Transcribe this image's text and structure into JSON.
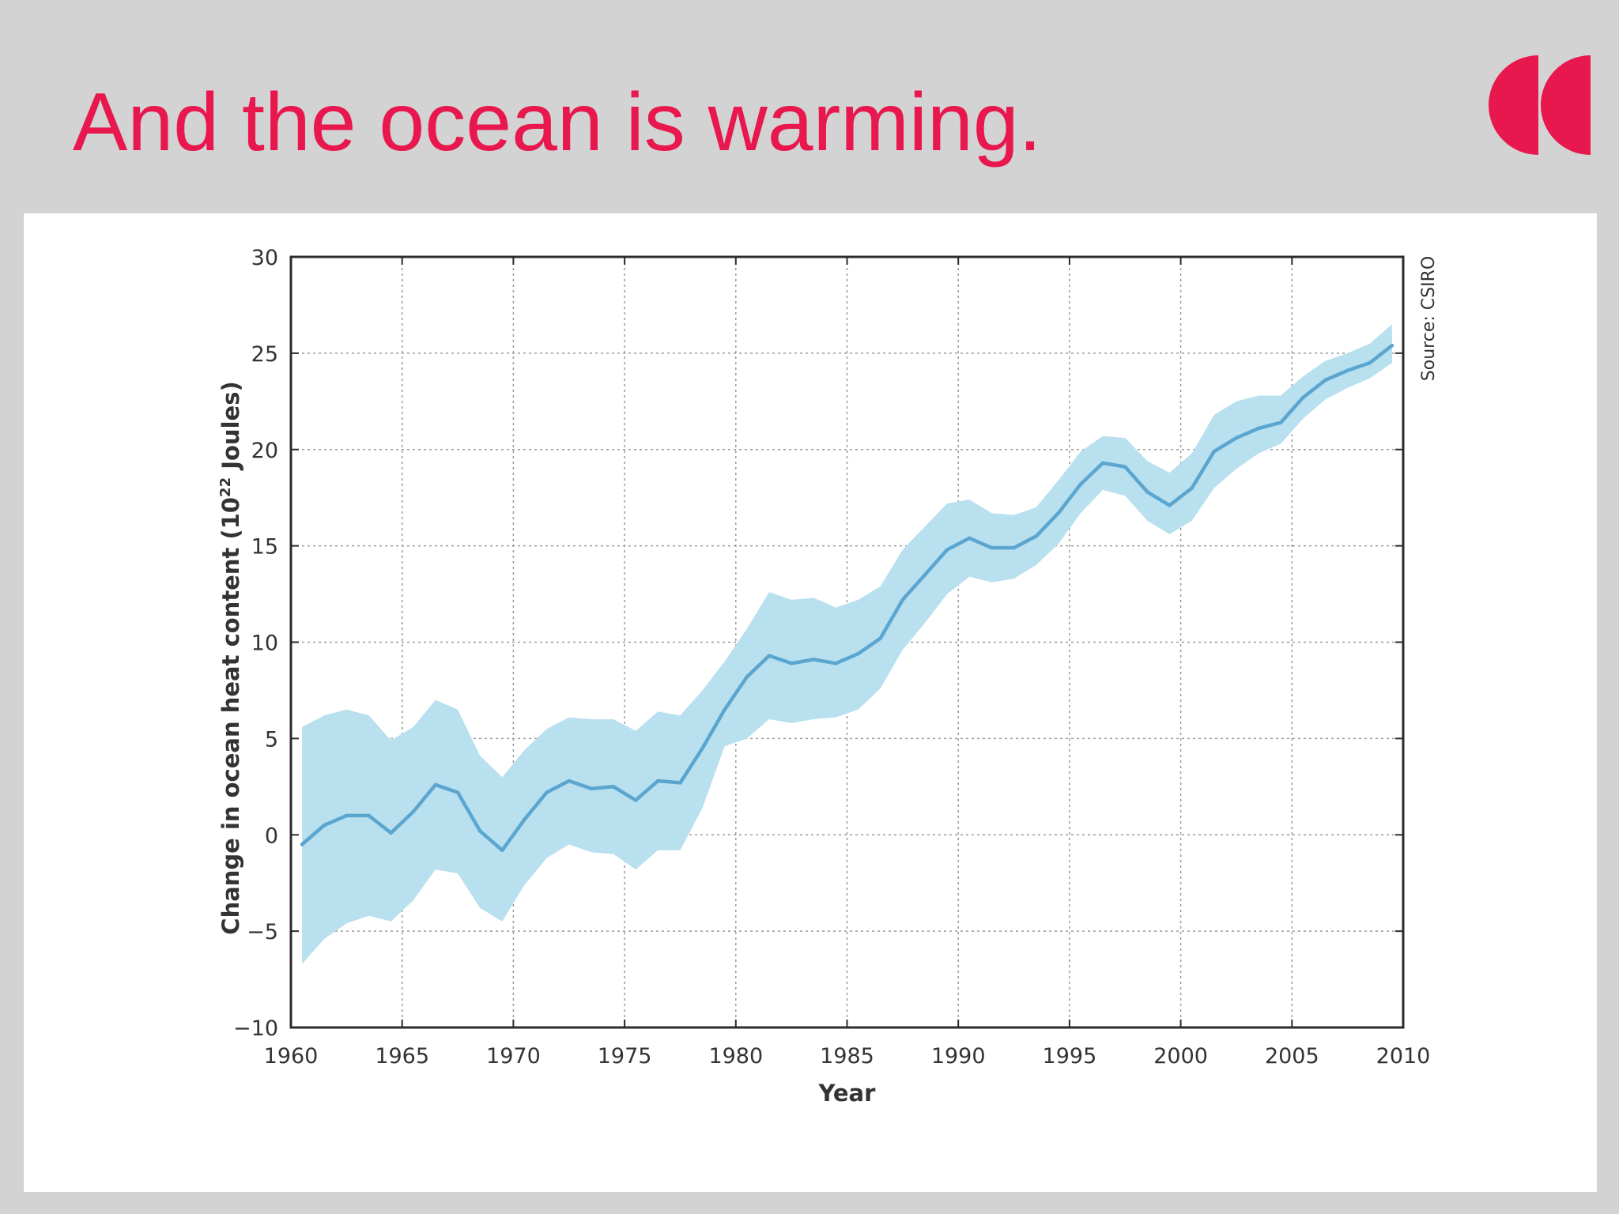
{
  "slide": {
    "title": "And the ocean is warming.",
    "title_color": "#e8174d",
    "logo_icon": "brand-double-c-icon",
    "logo_color": "#e8174d"
  },
  "chart_data": {
    "type": "line",
    "title": "",
    "xlabel": "Year",
    "ylabel_prefix": "Change in ocean heat content (10",
    "ylabel_sup": "22",
    "ylabel_suffix": " Joules)",
    "source": "Source: CSIRO",
    "xlim": [
      1960,
      2010
    ],
    "ylim": [
      -10,
      30
    ],
    "x_ticks": [
      1960,
      1965,
      1970,
      1975,
      1980,
      1985,
      1990,
      1995,
      2000,
      2005,
      2010
    ],
    "y_ticks": [
      -10,
      -5,
      0,
      5,
      10,
      15,
      20,
      25,
      30
    ],
    "x_tick_labels": [
      "1960",
      "1965",
      "1970",
      "1975",
      "1980",
      "1985",
      "1990",
      "1995",
      "2000",
      "2005",
      "2010"
    ],
    "y_tick_labels": [
      "−10",
      "−5",
      "0",
      "5",
      "10",
      "15",
      "20",
      "25",
      "30"
    ],
    "grid": true,
    "line_color": "#5aa6d0",
    "band_color": "#b9e0ee",
    "series": [
      {
        "name": "Ocean heat content change",
        "x": [
          1960.5,
          1961.5,
          1962.5,
          1963.5,
          1964.5,
          1965.5,
          1966.5,
          1967.5,
          1968.5,
          1969.5,
          1970.5,
          1971.5,
          1972.5,
          1973.5,
          1974.5,
          1975.5,
          1976.5,
          1977.5,
          1978.5,
          1979.5,
          1980.5,
          1981.5,
          1982.5,
          1983.5,
          1984.5,
          1985.5,
          1986.5,
          1987.5,
          1988.5,
          1989.5,
          1990.5,
          1991.5,
          1992.5,
          1993.5,
          1994.5,
          1995.5,
          1996.5,
          1997.5,
          1998.5,
          1999.5,
          2000.5,
          2001.5,
          2002.5,
          2003.5,
          2004.5,
          2005.5,
          2006.5,
          2007.5,
          2008.5,
          2009.5
        ],
        "values": [
          -0.5,
          0.5,
          1.0,
          1.0,
          0.1,
          1.2,
          2.6,
          2.2,
          0.2,
          -0.8,
          0.8,
          2.2,
          2.8,
          2.4,
          2.5,
          1.8,
          2.8,
          2.7,
          4.5,
          6.5,
          8.2,
          9.3,
          8.9,
          9.1,
          8.9,
          9.4,
          10.2,
          12.2,
          13.5,
          14.8,
          15.4,
          14.9,
          14.9,
          15.5,
          16.7,
          18.2,
          19.3,
          19.1,
          17.8,
          17.1,
          18.0,
          19.9,
          20.6,
          21.1,
          21.4,
          22.7,
          23.6,
          24.1,
          24.5,
          25.4
        ],
        "lower": [
          -6.7,
          -5.4,
          -4.6,
          -4.2,
          -4.5,
          -3.4,
          -1.8,
          -2.0,
          -3.8,
          -4.5,
          -2.6,
          -1.2,
          -0.5,
          -0.9,
          -1.0,
          -1.8,
          -0.8,
          -0.8,
          1.4,
          4.6,
          5.0,
          6.0,
          5.8,
          6.0,
          6.1,
          6.5,
          7.6,
          9.6,
          11.0,
          12.5,
          13.4,
          13.1,
          13.3,
          14.0,
          15.1,
          16.7,
          17.9,
          17.6,
          16.3,
          15.6,
          16.3,
          18.0,
          19.0,
          19.8,
          20.3,
          21.6,
          22.6,
          23.2,
          23.7,
          24.5
        ],
        "upper": [
          5.6,
          6.2,
          6.5,
          6.2,
          4.9,
          5.6,
          7.0,
          6.5,
          4.1,
          3.0,
          4.4,
          5.5,
          6.1,
          6.0,
          6.0,
          5.4,
          6.4,
          6.2,
          7.5,
          9.0,
          10.7,
          12.6,
          12.2,
          12.3,
          11.8,
          12.2,
          12.9,
          14.8,
          16.0,
          17.2,
          17.4,
          16.7,
          16.6,
          17.0,
          18.4,
          19.9,
          20.7,
          20.6,
          19.4,
          18.8,
          19.8,
          21.8,
          22.5,
          22.8,
          22.8,
          23.8,
          24.6,
          25.0,
          25.5,
          26.5
        ]
      }
    ]
  }
}
